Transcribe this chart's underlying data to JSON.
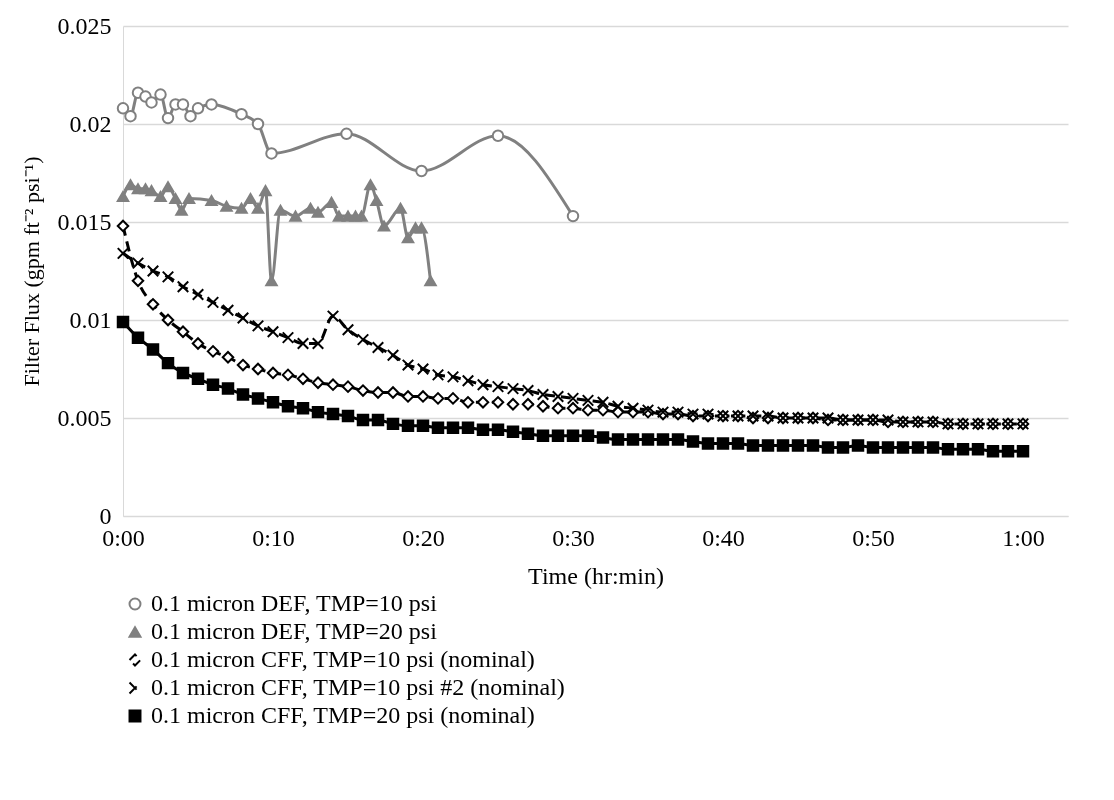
{
  "chart_data": {
    "type": "line",
    "xlabel": "Time  (hr:min)",
    "ylabel": "Filter Flux  (gpm ft⁻² psi⁻¹)",
    "xlim": [
      0,
      63
    ],
    "xticks": [
      {
        "value": 0,
        "label": "0:00"
      },
      {
        "value": 10,
        "label": "0:10"
      },
      {
        "value": 20,
        "label": "0:20"
      },
      {
        "value": 30,
        "label": "0:30"
      },
      {
        "value": 40,
        "label": "0:40"
      },
      {
        "value": 50,
        "label": "0:50"
      },
      {
        "value": 60,
        "label": "1:00"
      }
    ],
    "ylim": [
      0,
      0.025
    ],
    "yticks": [
      0,
      0.005,
      0.01,
      0.015,
      0.02,
      0.025
    ],
    "grid": "y",
    "legend": "bottom",
    "series": [
      {
        "name": "0.1 micron DEF, TMP=10 psi",
        "color": "#808080",
        "marker": "circle",
        "line_style": "solid",
        "x": [
          0,
          0.5,
          1,
          1.5,
          1.9,
          2.5,
          3,
          3.5,
          4,
          4.5,
          5,
          5.9,
          7.9,
          9,
          9.9,
          14.9,
          19.9,
          25,
          30
        ],
        "values": [
          0.0208,
          0.0204,
          0.0216,
          0.0214,
          0.0211,
          0.0215,
          0.0203,
          0.021,
          0.021,
          0.0204,
          0.0208,
          0.021,
          0.0205,
          0.02,
          0.0185,
          0.0195,
          0.0176,
          0.0194,
          0.0153
        ]
      },
      {
        "name": "0.1 micron DEF, TMP=20 psi",
        "color": "#808080",
        "marker": "triangle",
        "line_style": "solid",
        "x": [
          0,
          0.5,
          1,
          1.5,
          1.9,
          2.5,
          3,
          3.5,
          3.9,
          4.4,
          5.9,
          6.9,
          7.9,
          8.5,
          9,
          9.5,
          9.9,
          10.5,
          11.5,
          12.5,
          13,
          13.9,
          14.4,
          15,
          15.5,
          15.9,
          16.5,
          16.9,
          17.4,
          18.5,
          19,
          19.5,
          19.9,
          20.5
        ],
        "values": [
          0.0163,
          0.0169,
          0.0167,
          0.0167,
          0.0166,
          0.0163,
          0.0168,
          0.0162,
          0.0156,
          0.0162,
          0.0161,
          0.0158,
          0.0157,
          0.0162,
          0.0157,
          0.0166,
          0.012,
          0.0156,
          0.0153,
          0.0157,
          0.0155,
          0.016,
          0.0153,
          0.0153,
          0.0153,
          0.0153,
          0.0169,
          0.0161,
          0.0148,
          0.0157,
          0.0142,
          0.0147,
          0.0147,
          0.012
        ]
      },
      {
        "name": "0.1 micron CFF, TMP=10 psi (nominal)",
        "color": "#000000",
        "marker": "diamond",
        "line_style": "dashed",
        "x": [
          0,
          1,
          2,
          3,
          4,
          5,
          6,
          7,
          8,
          9,
          10,
          11,
          12,
          13,
          14,
          15,
          16,
          17,
          18,
          19,
          20,
          21,
          22,
          23,
          24,
          25,
          26,
          27,
          28,
          29,
          30,
          31,
          32,
          33,
          34,
          35,
          36,
          37,
          38,
          39,
          40,
          41,
          42,
          43,
          44,
          45,
          46,
          47,
          48,
          49,
          50,
          51,
          52,
          53,
          54,
          55,
          56,
          57,
          58,
          59,
          60
        ],
        "values": [
          0.0148,
          0.012,
          0.0108,
          0.01,
          0.0094,
          0.0088,
          0.0084,
          0.0081,
          0.0077,
          0.0075,
          0.0073,
          0.0072,
          0.007,
          0.0068,
          0.0067,
          0.0066,
          0.0064,
          0.0063,
          0.0063,
          0.0061,
          0.0061,
          0.006,
          0.006,
          0.0058,
          0.0058,
          0.0058,
          0.0057,
          0.0057,
          0.0056,
          0.0055,
          0.0055,
          0.0054,
          0.0054,
          0.0053,
          0.0053,
          0.0053,
          0.0052,
          0.0052,
          0.0051,
          0.0051,
          0.0051,
          0.0051,
          0.005,
          0.005,
          0.005,
          0.005,
          0.005,
          0.0049,
          0.0049,
          0.0049,
          0.0049,
          0.0048,
          0.0048,
          0.0048,
          0.0048,
          0.0047,
          0.0047,
          0.0047,
          0.0047,
          0.0047,
          0.0047
        ]
      },
      {
        "name": "0.1 micron CFF, TMP=10 psi #2 (nominal)",
        "color": "#000000",
        "marker": "cross",
        "line_style": "dashed",
        "x": [
          0,
          1,
          2,
          3,
          4,
          5,
          6,
          7,
          8,
          9,
          10,
          11,
          12,
          13,
          14,
          15,
          16,
          17,
          18,
          19,
          20,
          21,
          22,
          23,
          24,
          25,
          26,
          27,
          28,
          29,
          30,
          31,
          32,
          33,
          34,
          35,
          36,
          37,
          38,
          39,
          40,
          41,
          42,
          43,
          44,
          45,
          46,
          47,
          48,
          49,
          50,
          51,
          52,
          53,
          54,
          55,
          56,
          57,
          58,
          59,
          60
        ],
        "values": [
          0.0134,
          0.0129,
          0.0125,
          0.0122,
          0.0117,
          0.0113,
          0.0109,
          0.0105,
          0.0101,
          0.0097,
          0.0094,
          0.0091,
          0.0088,
          0.0088,
          0.0102,
          0.0095,
          0.009,
          0.0086,
          0.0082,
          0.0077,
          0.0075,
          0.0072,
          0.0071,
          0.0069,
          0.0067,
          0.0066,
          0.0065,
          0.0064,
          0.0062,
          0.0061,
          0.006,
          0.0059,
          0.0058,
          0.0056,
          0.0055,
          0.0054,
          0.0053,
          0.0053,
          0.0052,
          0.0052,
          0.0051,
          0.0051,
          0.0051,
          0.0051,
          0.005,
          0.005,
          0.005,
          0.005,
          0.0049,
          0.0049,
          0.0049,
          0.0049,
          0.0048,
          0.0048,
          0.0048,
          0.0047,
          0.0047,
          0.0047,
          0.0047,
          0.0047,
          0.0047
        ]
      },
      {
        "name": "0.1 micron CFF, TMP=20 psi (nominal)",
        "color": "#000000",
        "marker": "square",
        "line_style": "solid",
        "x": [
          0,
          1,
          2,
          3,
          4,
          5,
          6,
          7,
          8,
          9,
          10,
          11,
          12,
          13,
          14,
          15,
          16,
          17,
          18,
          19,
          20,
          21,
          22,
          23,
          24,
          25,
          26,
          27,
          28,
          29,
          30,
          31,
          32,
          33,
          34,
          35,
          36,
          37,
          38,
          39,
          40,
          41,
          42,
          43,
          44,
          45,
          46,
          47,
          48,
          49,
          50,
          51,
          52,
          53,
          54,
          55,
          56,
          57,
          58,
          59,
          60
        ],
        "values": [
          0.0099,
          0.0091,
          0.0085,
          0.0078,
          0.0073,
          0.007,
          0.0067,
          0.0065,
          0.0062,
          0.006,
          0.0058,
          0.0056,
          0.0055,
          0.0053,
          0.0052,
          0.0051,
          0.0049,
          0.0049,
          0.0047,
          0.0046,
          0.0046,
          0.0045,
          0.0045,
          0.0045,
          0.0044,
          0.0044,
          0.0043,
          0.0042,
          0.0041,
          0.0041,
          0.0041,
          0.0041,
          0.004,
          0.0039,
          0.0039,
          0.0039,
          0.0039,
          0.0039,
          0.0038,
          0.0037,
          0.0037,
          0.0037,
          0.0036,
          0.0036,
          0.0036,
          0.0036,
          0.0036,
          0.0035,
          0.0035,
          0.0036,
          0.0035,
          0.0035,
          0.0035,
          0.0035,
          0.0035,
          0.0034,
          0.0034,
          0.0034,
          0.0033,
          0.0033,
          0.0033
        ]
      }
    ]
  }
}
